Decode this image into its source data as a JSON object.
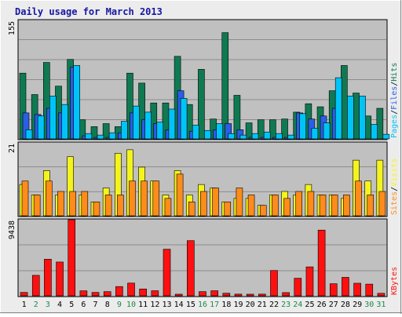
{
  "chart_data": {
    "type": "bar",
    "title": "Daily usage for March 2013",
    "colors": {
      "background": "#ececec",
      "plot": "#c0c0c0",
      "grid": "#8c8c8c",
      "title": "#1616a4",
      "pages": "#00c4f8",
      "files": "#2a5ee8",
      "hits": "#0f7a52",
      "visits": "#f4f41c",
      "sites": "#ff8c1a",
      "kbytes": "#ff1010",
      "weekday": "#000000",
      "weekend": "#1a8a4a"
    },
    "categories": [
      "1",
      "2",
      "3",
      "4",
      "5",
      "6",
      "7",
      "8",
      "9",
      "10",
      "11",
      "12",
      "13",
      "14",
      "15",
      "16",
      "17",
      "18",
      "19",
      "20",
      "21",
      "22",
      "23",
      "24",
      "25",
      "26",
      "27",
      "28",
      "29",
      "30",
      "31"
    ],
    "weekend_days": [
      "2",
      "3",
      "9",
      "10",
      "16",
      "17",
      "23",
      "24",
      "30",
      "31"
    ],
    "panels": [
      {
        "name": "top",
        "ymax_label": "155",
        "ymax": 155,
        "legend": [
          {
            "text": "Pages",
            "series": "pages"
          },
          {
            "text": "/",
            "series": "sep"
          },
          {
            "text": "Files",
            "series": "files"
          },
          {
            "text": "/",
            "series": "sep"
          },
          {
            "text": "Hits",
            "series": "hits"
          }
        ],
        "series": [
          {
            "key": "hits",
            "name": "Hits",
            "values": [
              86,
              58,
              100,
              69,
              104,
              25,
              16,
              20,
              16,
              86,
              73,
              47,
              47,
              108,
              45,
              91,
              26,
              139,
              57,
              21,
              25,
              25,
              26,
              35,
              46,
              42,
              63,
              96,
              60,
              30,
              40
            ]
          },
          {
            "key": "files",
            "name": "Files",
            "values": [
              34,
              32,
              40,
              34,
              94,
              4,
              2,
              2,
              8,
              34,
              25,
              20,
              12,
              63,
              10,
              0,
              12,
              20,
              12,
              2,
              2,
              2,
              2,
              34,
              26,
              30,
              40,
              0,
              0,
              0,
              0
            ]
          },
          {
            "key": "pages",
            "name": "Pages",
            "values": [
              12,
              30,
              56,
              45,
              96,
              7,
              5,
              8,
              23,
              43,
              35,
              22,
              39,
              53,
              18,
              11,
              20,
              7,
              5,
              7,
              9,
              7,
              5,
              33,
              14,
              21,
              80,
              56,
              56,
              19,
              6
            ]
          }
        ]
      },
      {
        "name": "middle",
        "ymax_label": "21",
        "ymax": 21,
        "legend": [
          {
            "text": "Sites",
            "series": "sites"
          },
          {
            "text": "/",
            "series": "sep"
          },
          {
            "text": "Visits",
            "series": "visits"
          }
        ],
        "series": [
          {
            "key": "visits",
            "name": "Visits",
            "values": [
              9,
              6,
              13,
              6,
              17,
              6,
              4,
              8,
              18,
              19,
              14,
              10,
              6,
              13,
              6,
              9,
              8,
              4,
              5,
              5,
              3,
              6,
              7,
              6,
              9,
              6,
              6,
              5,
              16,
              10,
              16
            ]
          },
          {
            "key": "sites",
            "name": "Sites",
            "values": [
              10,
              6,
              10,
              7,
              7,
              7,
              4,
              6,
              6,
              10,
              10,
              10,
              5,
              12,
              4,
              7,
              8,
              4,
              8,
              6,
              3,
              6,
              5,
              7,
              7,
              6,
              6,
              6,
              10,
              6,
              7
            ]
          }
        ]
      },
      {
        "name": "bottom",
        "ymax_label": "9438",
        "ymax": 9438,
        "legend": [
          {
            "text": "KBytes",
            "series": "kbytes"
          }
        ],
        "series": [
          {
            "key": "kbytes",
            "name": "KBytes",
            "values": [
              420,
              2540,
              4540,
              4190,
              9438,
              620,
              420,
              520,
              1150,
              1580,
              850,
              630,
              5780,
              200,
              6840,
              520,
              630,
              320,
              210,
              200,
              210,
              3140,
              400,
              2180,
              3590,
              8150,
              1500,
              2290,
              1560,
              1450,
              310
            ]
          }
        ]
      }
    ]
  }
}
